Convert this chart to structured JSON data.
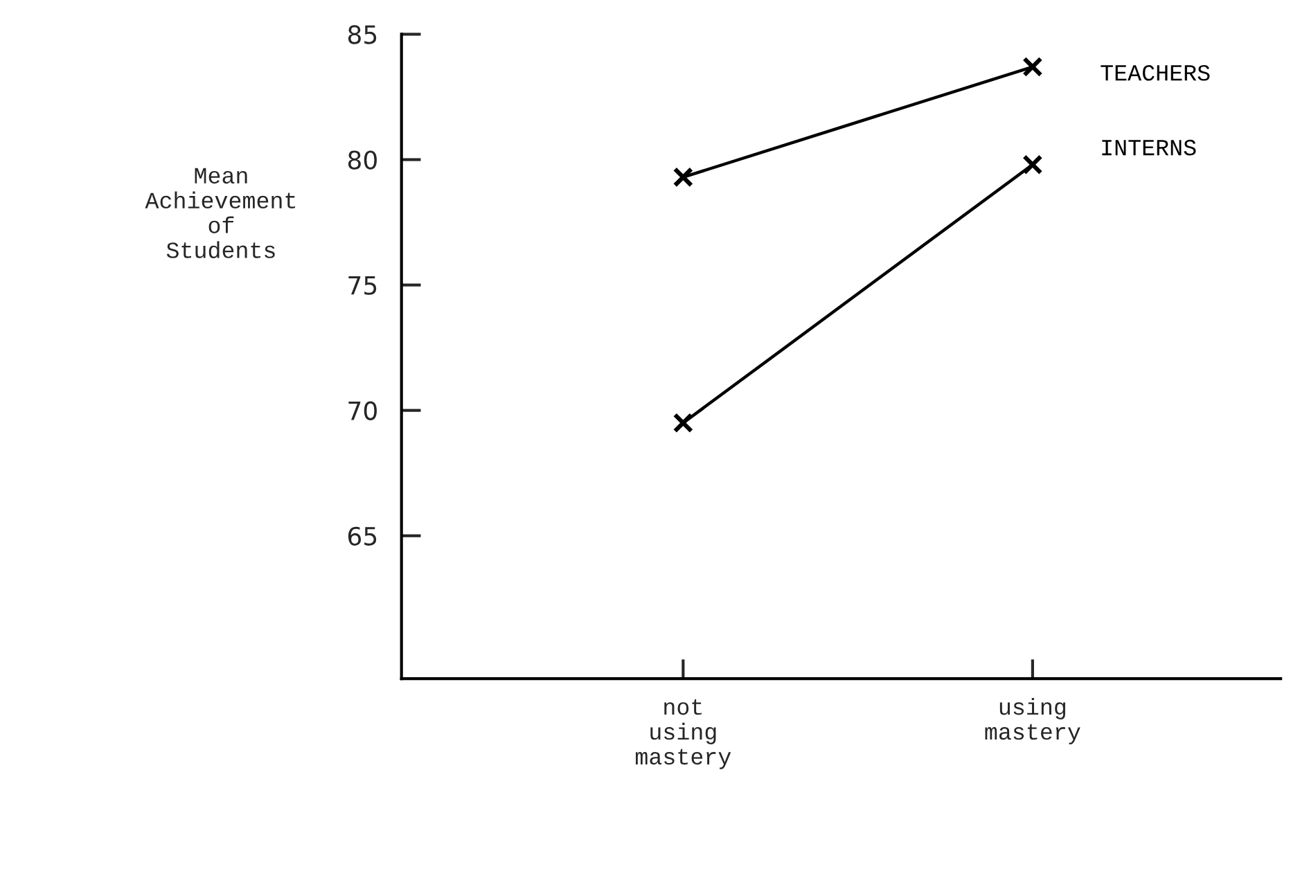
{
  "chart_data": {
    "type": "line",
    "ylabel": "Mean\nAchievement\nof\nStudents",
    "categories": [
      "not\nusing\nmastery",
      "using\nmastery"
    ],
    "series": [
      {
        "name": "TEACHERS",
        "color": "#000000",
        "values": [
          79.3,
          83.7
        ]
      },
      {
        "name": "INTERNS",
        "color": "#000000",
        "values": [
          69.5,
          79.8
        ]
      }
    ],
    "ylim": [
      59.3,
      85
    ],
    "yticks": [
      65,
      70,
      75,
      80,
      85
    ],
    "marker": "cross",
    "line_style": "solid",
    "grid": false
  }
}
